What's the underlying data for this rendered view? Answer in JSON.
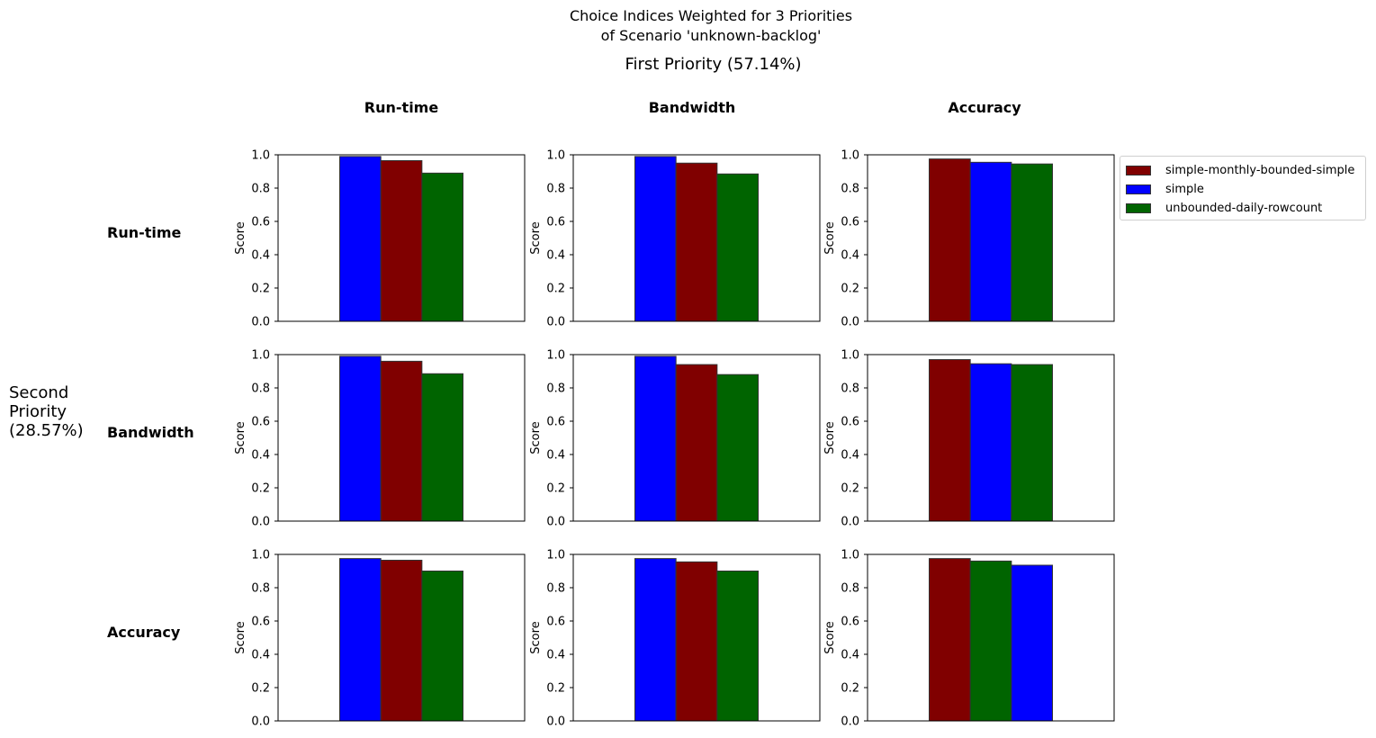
{
  "chart_data": {
    "type": "bar",
    "title_lines": [
      "Choice Indices Weighted for 3 Priorities",
      "of Scenario 'unknown-backlog'"
    ],
    "column_title": "First Priority (57.14%)",
    "row_title_lines": [
      "Second",
      "Priority",
      "(28.57%)"
    ],
    "columns": [
      "Run-time",
      "Bandwidth",
      "Accuracy"
    ],
    "rows": [
      "Run-time",
      "Bandwidth",
      "Accuracy"
    ],
    "ylabel": "Score",
    "ylim": [
      0,
      1.0
    ],
    "yticks": [
      "0.0",
      "0.2",
      "0.4",
      "0.6",
      "0.8",
      "1.0"
    ],
    "colors": {
      "simple-monthly-bounded-simple": "#800000",
      "simple": "#0000ff",
      "unbounded-daily-rowcount": "#006400"
    },
    "legend": {
      "placement": "right-of-top-right-panel",
      "entries": [
        "simple-monthly-bounded-simple",
        "simple",
        "unbounded-daily-rowcount"
      ]
    },
    "panels": [
      {
        "row": "Run-time",
        "col": "Run-time",
        "bars": [
          {
            "series": "simple",
            "value": 0.99
          },
          {
            "series": "simple-monthly-bounded-simple",
            "value": 0.965
          },
          {
            "series": "unbounded-daily-rowcount",
            "value": 0.89
          }
        ]
      },
      {
        "row": "Run-time",
        "col": "Bandwidth",
        "bars": [
          {
            "series": "simple",
            "value": 0.99
          },
          {
            "series": "simple-monthly-bounded-simple",
            "value": 0.95
          },
          {
            "series": "unbounded-daily-rowcount",
            "value": 0.885
          }
        ]
      },
      {
        "row": "Run-time",
        "col": "Accuracy",
        "bars": [
          {
            "series": "simple-monthly-bounded-simple",
            "value": 0.975
          },
          {
            "series": "simple",
            "value": 0.955
          },
          {
            "series": "unbounded-daily-rowcount",
            "value": 0.945
          }
        ]
      },
      {
        "row": "Bandwidth",
        "col": "Run-time",
        "bars": [
          {
            "series": "simple",
            "value": 0.99
          },
          {
            "series": "simple-monthly-bounded-simple",
            "value": 0.96
          },
          {
            "series": "unbounded-daily-rowcount",
            "value": 0.885
          }
        ]
      },
      {
        "row": "Bandwidth",
        "col": "Bandwidth",
        "bars": [
          {
            "series": "simple",
            "value": 0.99
          },
          {
            "series": "simple-monthly-bounded-simple",
            "value": 0.94
          },
          {
            "series": "unbounded-daily-rowcount",
            "value": 0.88
          }
        ]
      },
      {
        "row": "Bandwidth",
        "col": "Accuracy",
        "bars": [
          {
            "series": "simple-monthly-bounded-simple",
            "value": 0.97
          },
          {
            "series": "simple",
            "value": 0.945
          },
          {
            "series": "unbounded-daily-rowcount",
            "value": 0.94
          }
        ]
      },
      {
        "row": "Accuracy",
        "col": "Run-time",
        "bars": [
          {
            "series": "simple",
            "value": 0.975
          },
          {
            "series": "simple-monthly-bounded-simple",
            "value": 0.965
          },
          {
            "series": "unbounded-daily-rowcount",
            "value": 0.9
          }
        ]
      },
      {
        "row": "Accuracy",
        "col": "Bandwidth",
        "bars": [
          {
            "series": "simple",
            "value": 0.975
          },
          {
            "series": "simple-monthly-bounded-simple",
            "value": 0.955
          },
          {
            "series": "unbounded-daily-rowcount",
            "value": 0.9
          }
        ]
      },
      {
        "row": "Accuracy",
        "col": "Accuracy",
        "bars": [
          {
            "series": "simple-monthly-bounded-simple",
            "value": 0.975
          },
          {
            "series": "unbounded-daily-rowcount",
            "value": 0.96
          },
          {
            "series": "simple",
            "value": 0.935
          }
        ]
      }
    ]
  }
}
